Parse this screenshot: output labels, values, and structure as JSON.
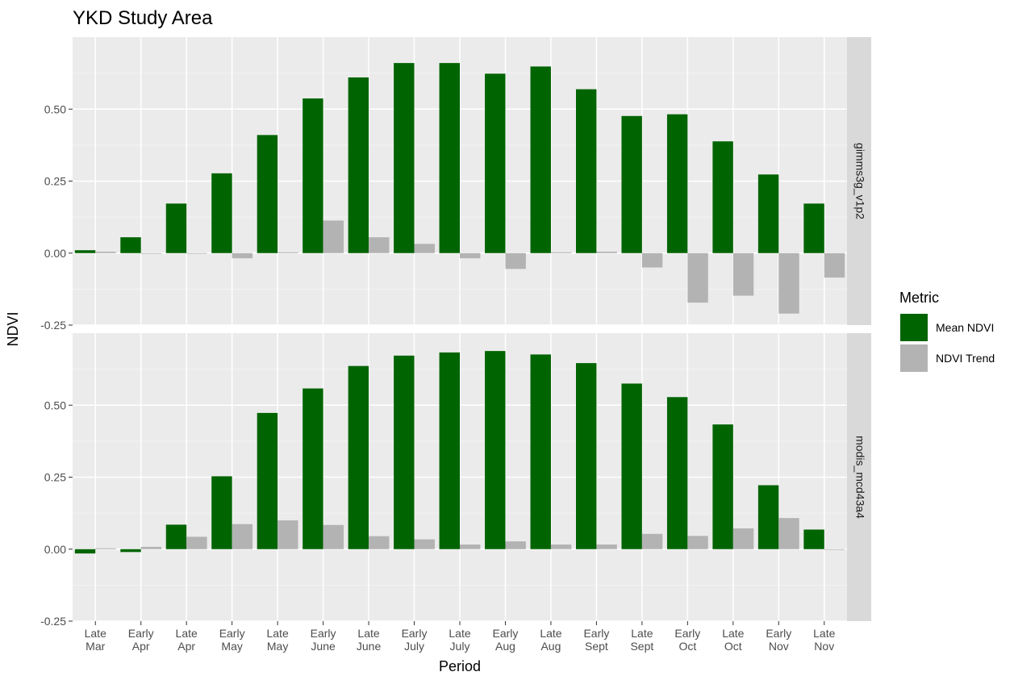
{
  "chart_data": {
    "type": "bar",
    "title": "YKD Study Area",
    "xlabel": "Period",
    "ylabel": "NDVI",
    "ylim": [
      -0.25,
      0.75
    ],
    "yticks": [
      "-0.25",
      "0.00",
      "0.25",
      "0.50"
    ],
    "grid": true,
    "legend_placement": "right",
    "categories": [
      [
        "Late",
        "Mar"
      ],
      [
        "Early",
        "Apr"
      ],
      [
        "Late",
        "Apr"
      ],
      [
        "Early",
        "May"
      ],
      [
        "Late",
        "May"
      ],
      [
        "Early",
        "June"
      ],
      [
        "Late",
        "June"
      ],
      [
        "Early",
        "July"
      ],
      [
        "Late",
        "July"
      ],
      [
        "Early",
        "Aug"
      ],
      [
        "Late",
        "Aug"
      ],
      [
        "Early",
        "Sept"
      ],
      [
        "Late",
        "Sept"
      ],
      [
        "Early",
        "Oct"
      ],
      [
        "Late",
        "Oct"
      ],
      [
        "Early",
        "Nov"
      ],
      [
        "Late",
        "Nov"
      ]
    ],
    "legend": {
      "title": "Metric",
      "entries": [
        {
          "name": "Mean NDVI",
          "color": "#006400"
        },
        {
          "name": "NDVI Trend",
          "color": "#b3b3b3"
        }
      ]
    },
    "panels": [
      {
        "strip": "gimms3g_v1p2",
        "series": [
          {
            "name": "Mean NDVI",
            "color": "#006400",
            "values": [
              0.01,
              0.055,
              0.172,
              0.277,
              0.41,
              0.537,
              0.61,
              0.66,
              0.66,
              0.623,
              0.648,
              0.569,
              0.476,
              0.482,
              0.388,
              0.273,
              0.172
            ]
          },
          {
            "name": "NDVI Trend",
            "color": "#b3b3b3",
            "values": [
              0.005,
              0.0,
              0.0,
              -0.018,
              0.003,
              0.113,
              0.055,
              0.032,
              -0.018,
              -0.055,
              0.003,
              0.005,
              -0.05,
              -0.172,
              -0.148,
              -0.21,
              -0.085
            ]
          }
        ]
      },
      {
        "strip": "modis_mcd43a4",
        "series": [
          {
            "name": "Mean NDVI",
            "color": "#006400",
            "values": [
              -0.015,
              -0.01,
              0.085,
              0.253,
              0.473,
              0.558,
              0.636,
              0.672,
              0.683,
              0.688,
              0.676,
              0.646,
              0.575,
              0.528,
              0.433,
              0.222,
              0.068
            ]
          },
          {
            "name": "NDVI Trend",
            "color": "#b3b3b3",
            "values": [
              0.003,
              0.008,
              0.043,
              0.087,
              0.1,
              0.084,
              0.045,
              0.034,
              0.016,
              0.027,
              0.016,
              0.016,
              0.053,
              0.046,
              0.072,
              0.108,
              0.0
            ]
          }
        ]
      }
    ]
  }
}
